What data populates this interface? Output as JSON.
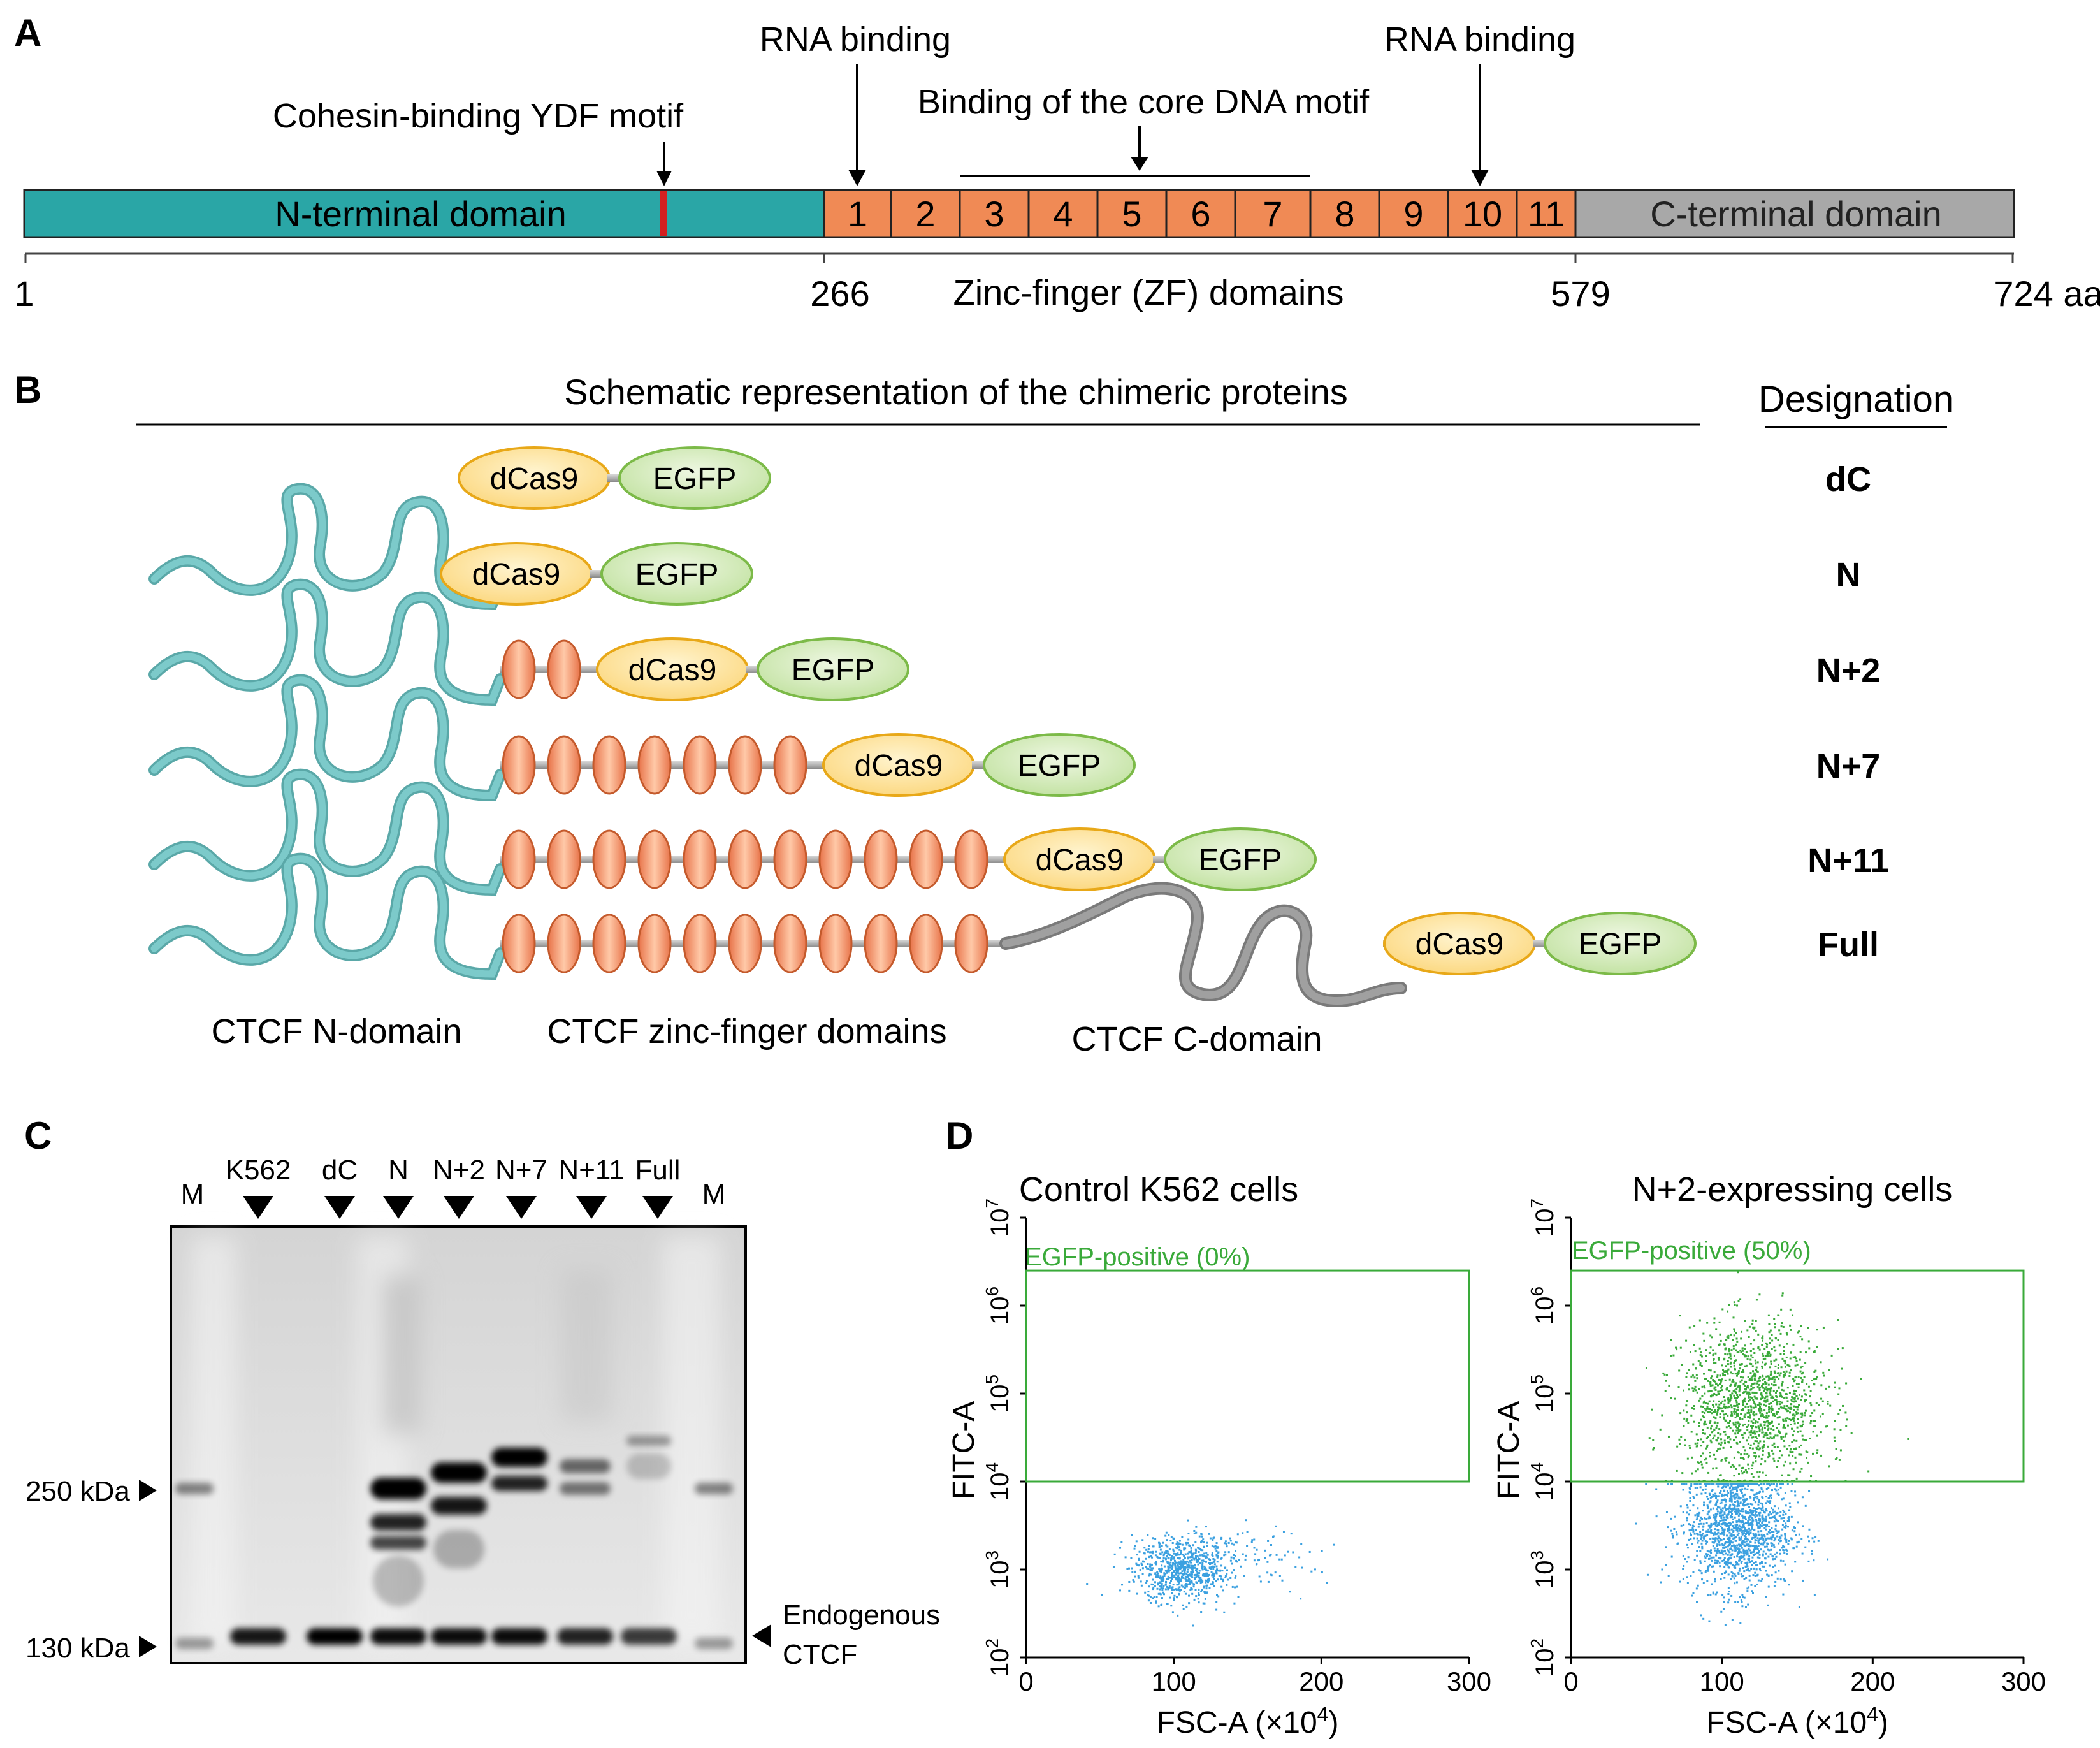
{
  "panel_labels": {
    "a": "A",
    "b": "B",
    "c": "C",
    "d": "D"
  },
  "panel_a": {
    "n_domain": "N-terminal domain",
    "c_domain": "C-terminal domain",
    "zf_numbers": [
      "1",
      "2",
      "3",
      "4",
      "5",
      "6",
      "7",
      "8",
      "9",
      "10",
      "11"
    ],
    "ruler_ticks": [
      "1",
      "266",
      "579",
      "724 aa"
    ],
    "zf_caption": "Zinc-finger (ZF) domains",
    "annotations": {
      "ydf": "Cohesin-binding YDF motif",
      "rna1": "RNA binding",
      "core": "Binding of the core DNA motif",
      "rna2": "RNA binding"
    },
    "colors": {
      "n_domain": "#2aa6a6",
      "zf": "#f08a55",
      "c_domain": "#a8a8a8",
      "ydf": "#d42020"
    }
  },
  "panel_b": {
    "title": "Schematic representation of the chimeric proteins",
    "designation_header": "Designation",
    "dcas9": "dCas9",
    "egfp": "EGFP",
    "constructs": [
      {
        "designation": "dC",
        "n_domain": false,
        "zf_count": 0,
        "c_domain": false
      },
      {
        "designation": "N",
        "n_domain": true,
        "zf_count": 0,
        "c_domain": false
      },
      {
        "designation": "N+2",
        "n_domain": true,
        "zf_count": 2,
        "c_domain": false
      },
      {
        "designation": "N+7",
        "n_domain": true,
        "zf_count": 7,
        "c_domain": false
      },
      {
        "designation": "N+11",
        "n_domain": true,
        "zf_count": 11,
        "c_domain": false
      },
      {
        "designation": "Full",
        "n_domain": true,
        "zf_count": 11,
        "c_domain": true
      }
    ],
    "captions": {
      "n": "CTCF N-domain",
      "zf": "CTCF zinc-finger domains",
      "c": "CTCF C-domain"
    },
    "colors": {
      "n_chain": "#7ccaca",
      "zf": "#f08a55",
      "c_chain": "#a0a0a0",
      "dcas9": "#f7c040",
      "egfp": "#9ccc62"
    }
  },
  "panel_c": {
    "lanes": [
      "M",
      "K562",
      "dC",
      "N",
      "N+2",
      "N+7",
      "N+11",
      "Full",
      "M"
    ],
    "markers": [
      "250 kDa",
      "130 kDa"
    ],
    "endogenous": [
      "Endogenous",
      "CTCF"
    ]
  },
  "panel_d": {
    "y_ticks": [
      "2",
      "3",
      "4",
      "5",
      "6",
      "7"
    ],
    "x_ticks": [
      "0",
      "100",
      "200",
      "300"
    ],
    "ylabel": "FITC-A",
    "xlabel_prefix": "FSC-A (×10",
    "xlabel_exp": "4",
    "xlabel_suffix": ")",
    "tick_base": "10",
    "plots": [
      {
        "title": "Control K562 cells",
        "gate_label": "EGFP-positive (0%)"
      },
      {
        "title": "N+2-expressing cells",
        "gate_label": "EGFP-positive (50%)"
      }
    ],
    "colors": {
      "positive": "#3aaa3a",
      "negative": "#3aa0e0",
      "gate": "#3aaa3a"
    }
  },
  "chart_data": [
    {
      "type": "scatter",
      "title": "Control K562 cells",
      "xlabel": "FSC-A (×10⁴)",
      "ylabel": "FITC-A",
      "xlim": [
        0,
        300
      ],
      "ylim": [
        100,
        10000000
      ],
      "y_scale": "log",
      "gate": {
        "label": "EGFP-positive (0%)",
        "x": [
          0,
          300
        ],
        "y": [
          10000,
          2500000
        ]
      },
      "series": [
        {
          "color": "#3aa0e0",
          "cluster": {
            "x_center": 105,
            "y_center": 1000,
            "points": 900
          }
        }
      ]
    },
    {
      "type": "scatter",
      "title": "N+2-expressing cells",
      "xlabel": "FSC-A (×10⁴)",
      "ylabel": "FITC-A",
      "xlim": [
        0,
        300
      ],
      "ylim": [
        100,
        10000000
      ],
      "y_scale": "log",
      "gate": {
        "label": "EGFP-positive (50%)",
        "x": [
          0,
          300
        ],
        "y": [
          10000,
          2500000
        ]
      },
      "series": [
        {
          "color": "#3aa0e0",
          "cluster": {
            "x_center": 110,
            "y_center": 3000,
            "points": 1500
          }
        },
        {
          "color": "#3aaa3a",
          "cluster": {
            "x_center": 120,
            "y_center": 80000,
            "points": 1500
          }
        }
      ]
    }
  ]
}
